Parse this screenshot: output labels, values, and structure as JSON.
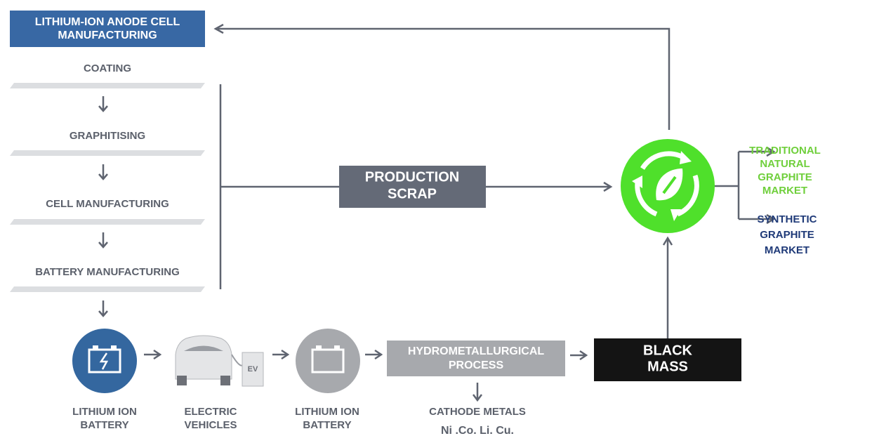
{
  "header": {
    "title": [
      "LITHIUM-ION ANODE CELL",
      "MANUFACTURING"
    ]
  },
  "steps": [
    "COATING",
    "GRAPHITISING",
    "CELL MANUFACTURING",
    "BATTERY MANUFACTURING"
  ],
  "production_scrap": [
    "PRODUCTION",
    "SCRAP"
  ],
  "markets": {
    "traditional": [
      "TRADITIONAL",
      "NATURAL",
      "GRAPHITE",
      "MARKET"
    ],
    "synthetic": [
      "SYNTHETIC",
      "GRAPHITE",
      "MARKET"
    ]
  },
  "bottom": {
    "battery_1": [
      "LITHIUM ION",
      "BATTERY"
    ],
    "vehicles": [
      "ELECTRIC",
      "VEHICLES"
    ],
    "charger": "EV",
    "battery_2": [
      "LITHIUM ION",
      "BATTERY"
    ],
    "process": [
      "HYDROMETALLURGICAL",
      "PROCESS"
    ],
    "cathode": "CATHODE METALS",
    "metals": "Ni .Co.  Li. Cu.",
    "black_mass": [
      "BLACK",
      "MASS"
    ]
  }
}
